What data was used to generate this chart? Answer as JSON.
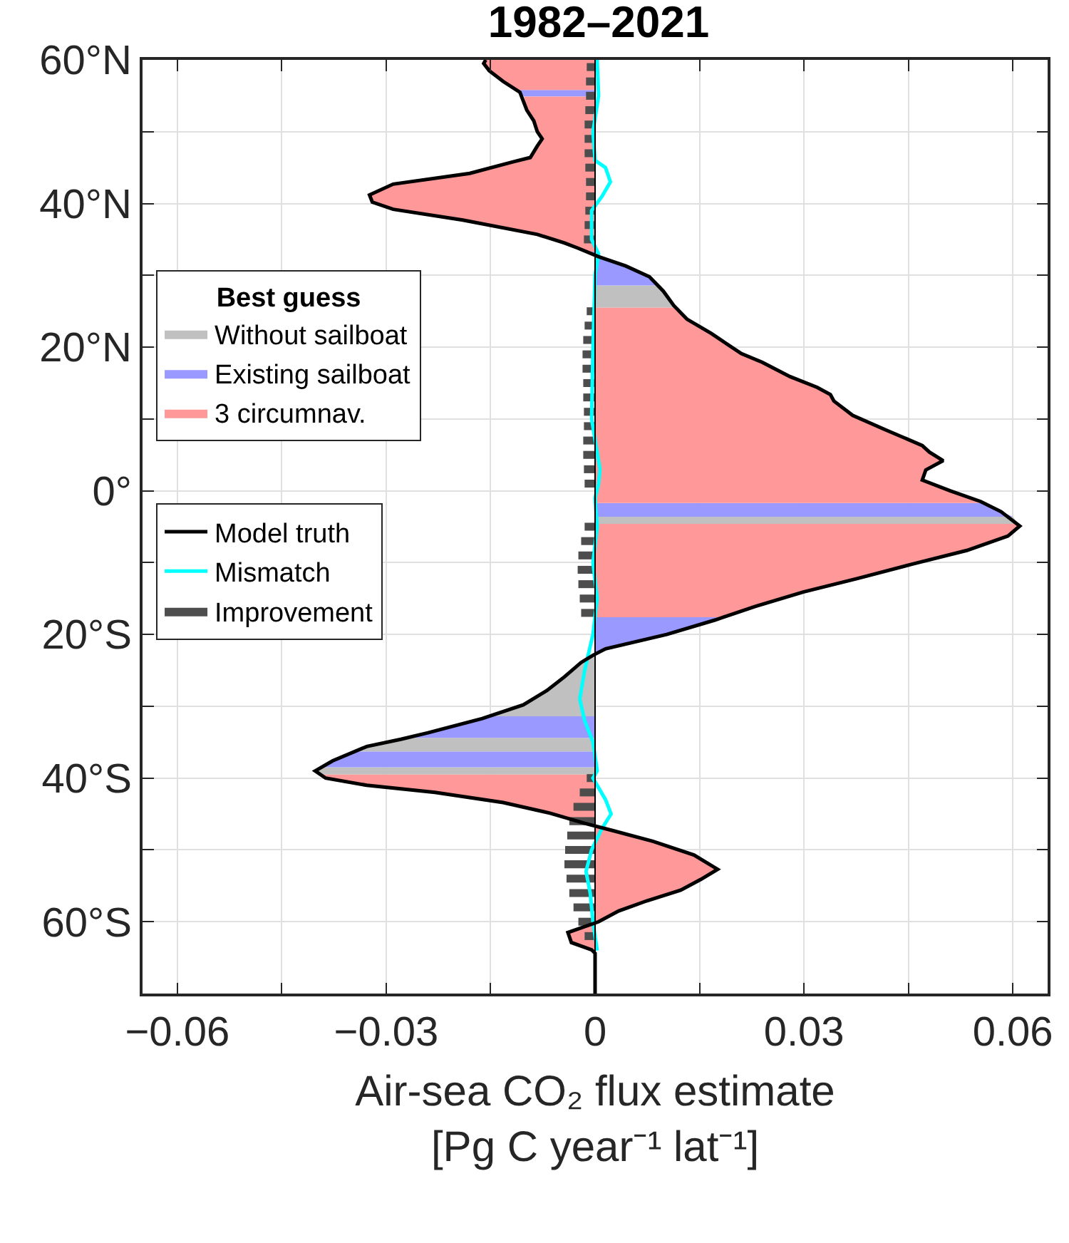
{
  "chart_data": {
    "type": "area",
    "orientation": "horizontal",
    "title": "1982–2021",
    "xlabel": "Air-sea CO₂ flux estimate\n[Pg C year⁻¹ lat⁻¹]",
    "legend_title": "Best guess",
    "legend": "left",
    "grid": true,
    "xlim": [
      -0.065,
      0.065
    ],
    "xticks": [
      {
        "value": -0.06,
        "label": "−0.06"
      },
      {
        "value": -0.045,
        "label": null
      },
      {
        "value": -0.03,
        "label": "−0.03"
      },
      {
        "value": -0.015,
        "label": null
      },
      0,
      {
        "value": 0.015,
        "label": null
      },
      0.03,
      {
        "value": 0.045,
        "label": null
      },
      0.06
    ],
    "ylim": [
      -70,
      60
    ],
    "yticks": [
      {
        "value": 60,
        "label": "60°N"
      },
      {
        "value": 50,
        "label": null
      },
      {
        "value": 40,
        "label": "40°N"
      },
      {
        "value": 30,
        "label": null
      },
      {
        "value": 20,
        "label": "20°N"
      },
      {
        "value": 10,
        "label": null
      },
      {
        "value": 0,
        "label": "0°"
      },
      {
        "value": -10,
        "label": null
      },
      {
        "value": -20,
        "label": "20°S"
      },
      {
        "value": -30,
        "label": null
      },
      {
        "value": -40,
        "label": "40°S"
      },
      {
        "value": -50,
        "label": null
      },
      {
        "value": -60,
        "label": "60°S"
      },
      {
        "value": -70,
        "label": null
      }
    ],
    "ref_lines": [
      {
        "axis": "x",
        "value": 0,
        "color": "#000000"
      }
    ],
    "series": [
      {
        "name": "Without sailboat",
        "color": "#c0c0c0",
        "x": [
          28.6,
          27.8,
          25.8,
          25.5,
          null,
          -3.6,
          -4.6,
          null,
          -22.9,
          -23.9,
          -25.9,
          -27.8,
          -29.8,
          -31.4,
          null,
          -34.4,
          -34.6,
          -35.6,
          -36.3,
          null,
          -38.5,
          -39,
          -39.5
        ],
        "values": [
          0.009,
          0.0098,
          0.0113,
          0.0115,
          null,
          0.06,
          0.0608,
          null,
          -0.0003,
          -0.002,
          -0.0044,
          -0.0069,
          -0.0103,
          -0.015,
          null,
          -0.0267,
          -0.0279,
          -0.0328,
          -0.0345,
          null,
          -0.0395,
          -0.0402,
          -0.0395
        ]
      },
      {
        "name": "Existing sailboat",
        "color": "#9999ff",
        "x": [
          55.8,
          55.5,
          54.9,
          null,
          33.3,
          32.6,
          31.3,
          29.8,
          28.6,
          null,
          -1.7,
          -2.9,
          -3.6,
          null,
          -17.6,
          -18,
          -20,
          -22,
          -22.9,
          null,
          -31.4,
          -31.7,
          -33.7,
          -34.4,
          null,
          -36.3,
          -37.6,
          -38.5
        ],
        "values": [
          -0.0115,
          -0.0108,
          -0.0102,
          null,
          -0.0018,
          0.0005,
          0.0044,
          0.0078,
          0.009,
          null,
          0.0557,
          0.0583,
          0.06,
          null,
          0.0185,
          0.0172,
          0.0103,
          0.0015,
          -0.0003,
          null,
          -0.015,
          -0.0162,
          -0.024,
          -0.0267,
          null,
          -0.0345,
          -0.0377,
          -0.0395
        ]
      },
      {
        "name": "3 circumnav.",
        "color": "#ff9999",
        "x": [
          60,
          59.5,
          58.5,
          57,
          55.8,
          null,
          54.9,
          53,
          51.5,
          50,
          49,
          48,
          46.4,
          45.8,
          44.2,
          42.7,
          41.2,
          40.2,
          39.2,
          37.7,
          35.7,
          34.5,
          33.8,
          33.3,
          null,
          25.5,
          23.9,
          21.9,
          19.1,
          17.9,
          15.9,
          14.4,
          13.4,
          12.5,
          10.5,
          8.5,
          6.3,
          5.4,
          4.2,
          2.9,
          1.5,
          0,
          -1.5,
          -1.7,
          null,
          -4.6,
          -4.9,
          -6.3,
          -8.3,
          -10.2,
          -12.2,
          -14.1,
          -16.1,
          -17.6,
          null,
          -39.5,
          -40,
          -41,
          -42,
          -43.4,
          -44.9,
          -46.3,
          -47.3,
          -48.8,
          -50.7,
          -52.7,
          -54.1,
          -55.6,
          -57.1,
          -58.5,
          -60,
          -61.5,
          -62.9,
          -63.9,
          -64.4
        ],
        "values": [
          -0.0157,
          -0.016,
          -0.0152,
          -0.0132,
          -0.0115,
          null,
          -0.0102,
          -0.0098,
          -0.0088,
          -0.0083,
          -0.0076,
          -0.0083,
          -0.0093,
          -0.0118,
          -0.018,
          -0.029,
          -0.0324,
          -0.032,
          -0.029,
          -0.019,
          -0.0083,
          -0.0044,
          -0.0025,
          -0.0018,
          null,
          0.0115,
          0.0132,
          0.0167,
          0.021,
          0.024,
          0.028,
          0.0319,
          0.0338,
          0.0343,
          0.037,
          0.0417,
          0.047,
          0.048,
          0.05,
          0.0475,
          0.047,
          0.051,
          0.0554,
          0.0557,
          null,
          0.0608,
          0.061,
          0.0593,
          0.0534,
          0.0456,
          0.0377,
          0.0299,
          0.023,
          0.0185,
          null,
          -0.0395,
          -0.0387,
          -0.0328,
          -0.023,
          -0.0132,
          -0.0064,
          -0.0015,
          0.0025,
          0.0083,
          0.0142,
          0.0176,
          0.0152,
          0.0123,
          0.0074,
          0.0034,
          0.0005,
          -0.0039,
          -0.0034,
          -0.0005,
          0
        ]
      },
      {
        "name": "Improvement",
        "type": "bar",
        "color": "#4d4d4d",
        "x": [
          59,
          57,
          55,
          53,
          51,
          49,
          47,
          45,
          43,
          41,
          39,
          37,
          35,
          25,
          23,
          21,
          19,
          17,
          15,
          13,
          11,
          9,
          7,
          5,
          3,
          1,
          -5,
          -7,
          -9,
          -11,
          -13,
          -15,
          -17,
          -40,
          -42,
          -44,
          -46,
          -48,
          -50,
          -52,
          -54,
          -56,
          -58,
          -60,
          -62
        ],
        "values": [
          -0.0012,
          -0.0013,
          -0.0013,
          -0.0014,
          -0.0015,
          -0.0015,
          -0.0015,
          -0.0014,
          -0.0013,
          -0.0013,
          -0.0014,
          -0.0015,
          -0.0016,
          -0.0012,
          -0.0015,
          -0.0017,
          -0.0018,
          -0.0018,
          -0.0017,
          -0.0017,
          -0.0016,
          -0.0016,
          -0.0017,
          -0.0017,
          -0.0016,
          -0.0015,
          -0.0015,
          -0.002,
          -0.0024,
          -0.0025,
          -0.0024,
          -0.0022,
          -0.002,
          -0.0012,
          -0.0022,
          -0.0031,
          -0.0037,
          -0.004,
          -0.0043,
          -0.0044,
          -0.0041,
          -0.0037,
          -0.0031,
          -0.0024,
          -0.0015
        ]
      },
      {
        "name": "Mismatch",
        "type": "line",
        "color": "#00ffff",
        "x": [
          60,
          55,
          50,
          46,
          45,
          43,
          41,
          39,
          35,
          33,
          30,
          20,
          10,
          3,
          1,
          -1,
          -5,
          -10,
          -15,
          -20,
          -25,
          -29,
          -32,
          -35,
          -39,
          -40,
          -43,
          -45,
          -47,
          -50,
          -53,
          -56,
          -60,
          -64
        ],
        "values": [
          0.0003,
          0.0005,
          -0.0003,
          0,
          0.0015,
          0.0022,
          0.001,
          -0.0005,
          -0.0005,
          0.0005,
          0,
          -0.0003,
          -0.0005,
          0.0007,
          0.0005,
          0,
          0.0003,
          -0.0003,
          0.0003,
          -0.0003,
          -0.0015,
          -0.0022,
          -0.0015,
          -0.0003,
          0.0003,
          -0.0003,
          0.0015,
          0.0023,
          0.001,
          -0.0005,
          -0.0013,
          -0.0007,
          -0.0003,
          0.0003
        ]
      },
      {
        "name": "Model truth",
        "type": "line",
        "color": "#000000",
        "x": [
          60,
          59.5,
          58.5,
          57,
          55.5,
          53,
          51.5,
          50,
          49,
          48,
          46.4,
          45.8,
          44.2,
          42.7,
          41.2,
          40.2,
          39.2,
          37.7,
          35.7,
          34.5,
          33.8,
          32.6,
          31.3,
          29.8,
          27.8,
          25.8,
          23.9,
          21.9,
          19.1,
          17.9,
          15.9,
          14.4,
          13.4,
          12.5,
          10.5,
          8.5,
          6.3,
          5.4,
          4.2,
          2.9,
          1.5,
          0,
          -1.5,
          -2.9,
          -4.9,
          -6.3,
          -8.3,
          -10.2,
          -12.2,
          -14.1,
          -16.1,
          -18,
          -20,
          -22,
          -22.9,
          -23.9,
          -25.9,
          -27.8,
          -29.8,
          -31.7,
          -33.7,
          -34.6,
          -35.6,
          -37.6,
          -39,
          -40,
          -41,
          -42,
          -43.4,
          -44.9,
          -46.3,
          -47.3,
          -48.8,
          -50.7,
          -52.7,
          -54.1,
          -55.6,
          -57.1,
          -58.5,
          -60,
          -61.5,
          -62.9,
          -63.9,
          -64.4,
          -70
        ],
        "values": [
          -0.0157,
          -0.016,
          -0.0152,
          -0.0132,
          -0.0108,
          -0.0098,
          -0.0088,
          -0.0083,
          -0.0076,
          -0.0083,
          -0.0093,
          -0.0118,
          -0.018,
          -0.029,
          -0.0324,
          -0.032,
          -0.029,
          -0.019,
          -0.0083,
          -0.0044,
          -0.0025,
          0.0005,
          0.0044,
          0.0078,
          0.0098,
          0.0113,
          0.0132,
          0.0167,
          0.021,
          0.024,
          0.028,
          0.0319,
          0.0338,
          0.0343,
          0.037,
          0.0417,
          0.047,
          0.048,
          0.05,
          0.0475,
          0.047,
          0.051,
          0.0554,
          0.0583,
          0.061,
          0.0593,
          0.0534,
          0.0456,
          0.0377,
          0.0299,
          0.023,
          0.0172,
          0.0103,
          0.0015,
          -0.0003,
          -0.002,
          -0.0044,
          -0.0069,
          -0.0103,
          -0.0162,
          -0.024,
          -0.0279,
          -0.0328,
          -0.0377,
          -0.0402,
          -0.0387,
          -0.0328,
          -0.023,
          -0.0132,
          -0.0064,
          -0.0015,
          0.0025,
          0.0083,
          0.0142,
          0.0176,
          0.0152,
          0.0123,
          0.0074,
          0.0034,
          0.0005,
          -0.0039,
          -0.0034,
          -0.0005,
          0,
          0
        ]
      }
    ]
  }
}
